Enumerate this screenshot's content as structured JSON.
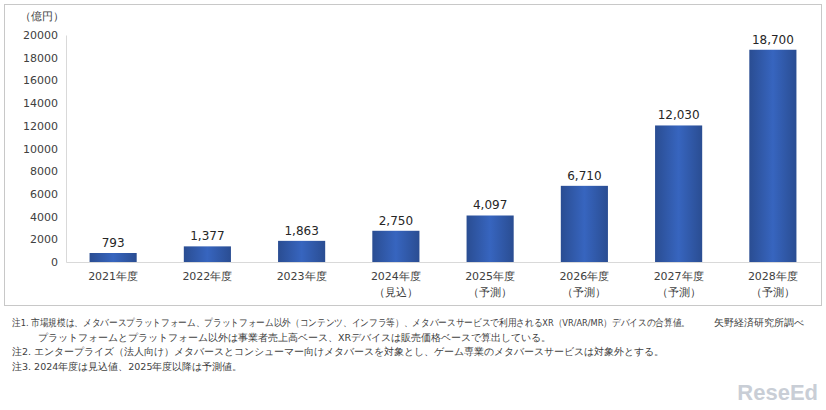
{
  "chart_data": {
    "type": "bar",
    "y_label": "（億円）",
    "categories": [
      "2021年度",
      "2022年度",
      "2023年度",
      "2024年度\n（見込）",
      "2025年度\n（予測）",
      "2026年度\n（予測）",
      "2027年度\n（予測）",
      "2028年度\n（予測）"
    ],
    "values": [
      793,
      1377,
      1863,
      2750,
      4097,
      6710,
      12030,
      18700
    ],
    "value_labels": [
      "793",
      "1,377",
      "1,863",
      "2,750",
      "4,097",
      "6,710",
      "12,030",
      "18,700"
    ],
    "color": "#2f56a3",
    "ylim": [
      0,
      20000
    ],
    "yticks": [
      0,
      2000,
      4000,
      6000,
      8000,
      10000,
      12000,
      14000,
      16000,
      18000,
      20000
    ],
    "grid": false,
    "data_labels": true,
    "source": "矢野経済研究所調べ",
    "notes": [
      [
        "注1. 市場規模は、メタバースプラットフォーム、プラットフォーム以外（コンテンツ、インフラ等）、メタバースサービスで利用されるXR（VR/AR/MR）デバイスの合算値。",
        "プラットフォームとプラットフォーム以外は事業者売上高ベース、XRデバイスは販売価格ベースで算出している。"
      ],
      [
        "注2. エンタープライズ（法人向け）メタバースとコンシューマー向けメタバースを対象とし、ゲーム専業のメタバースサービスは対象外とする。"
      ],
      [
        "注3. 2024年度は見込値、2025年度以降は予測値。"
      ]
    ],
    "watermark": "ReseEd"
  }
}
